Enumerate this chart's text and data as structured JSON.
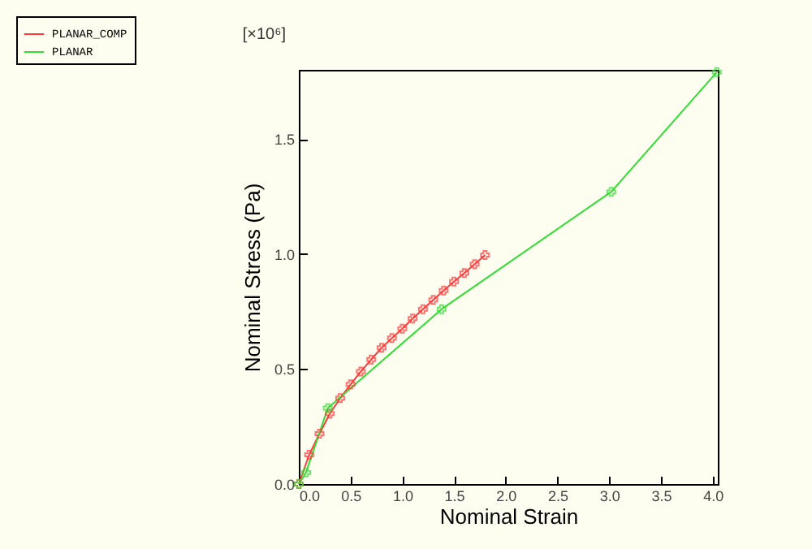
{
  "chart_data": {
    "type": "line",
    "xlabel": "Nominal Strain",
    "ylabel": "Nominal Stress (Pa)",
    "annotations": [
      "[×10⁶]"
    ],
    "xlim": [
      0,
      4.05
    ],
    "ylim": [
      0,
      1.8
    ],
    "xticks": [
      {
        "value": 0,
        "label": "0.0"
      },
      0.5,
      {
        "value": 1,
        "label": "1.0"
      },
      1.5,
      {
        "value": 2,
        "label": "2.0"
      },
      2.5,
      {
        "value": 3,
        "label": "3.0"
      },
      3.5,
      {
        "value": 4,
        "label": "4.0"
      }
    ],
    "yticks": [
      {
        "value": 0,
        "label": "0.0"
      },
      0.5,
      {
        "value": 1,
        "label": "1.0"
      },
      1.5
    ],
    "grid": false,
    "legend": "top left",
    "marker": "cross",
    "line_style": "solid",
    "series": [
      {
        "name": "PLANAR_COMP",
        "color": "#ff3a3a",
        "x": [
          0,
          0.1,
          0.2,
          0.3,
          0.4,
          0.5,
          0.6,
          0.7,
          0.8,
          0.9,
          1.0,
          1.1,
          1.2,
          1.3,
          1.4,
          1.5,
          1.6,
          1.7,
          1.8
        ],
        "values": [
          0,
          0.127,
          0.219,
          0.306,
          0.373,
          0.433,
          0.489,
          0.541,
          0.592,
          0.634,
          0.675,
          0.719,
          0.76,
          0.8,
          0.841,
          0.88,
          0.917,
          0.956,
          0.995
        ]
      },
      {
        "name": "PLANAR",
        "color": "#33dd33",
        "x": [
          0,
          0.07,
          0.28,
          1.38,
          3.02,
          4.04
        ],
        "values": [
          0,
          0.05,
          0.33,
          0.76,
          1.27,
          1.79
        ]
      }
    ]
  }
}
